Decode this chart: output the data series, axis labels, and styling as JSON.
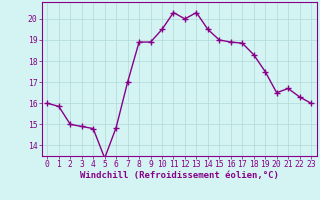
{
  "x": [
    0,
    1,
    2,
    3,
    4,
    5,
    6,
    7,
    8,
    9,
    10,
    11,
    12,
    13,
    14,
    15,
    16,
    17,
    18,
    19,
    20,
    21,
    22,
    23
  ],
  "y": [
    16.0,
    15.85,
    15.0,
    14.9,
    14.8,
    13.4,
    14.85,
    17.0,
    18.9,
    18.9,
    19.5,
    20.3,
    20.0,
    20.3,
    19.5,
    19.0,
    18.9,
    18.85,
    18.3,
    17.5,
    16.5,
    16.7,
    16.3,
    16.0
  ],
  "line_color": "#880088",
  "marker": "+",
  "marker_size": 4,
  "linewidth": 1.0,
  "bg_color": "#d4f4f4",
  "grid_color": "#b0d8d8",
  "xlabel": "Windchill (Refroidissement éolien,°C)",
  "xlabel_fontsize": 6.5,
  "tick_fontsize": 5.8,
  "ylim": [
    13.5,
    20.8
  ],
  "xlim": [
    -0.5,
    23.5
  ],
  "yticks": [
    14,
    15,
    16,
    17,
    18,
    19,
    20
  ],
  "xticks": [
    0,
    1,
    2,
    3,
    4,
    5,
    6,
    7,
    8,
    9,
    10,
    11,
    12,
    13,
    14,
    15,
    16,
    17,
    18,
    19,
    20,
    21,
    22,
    23
  ]
}
